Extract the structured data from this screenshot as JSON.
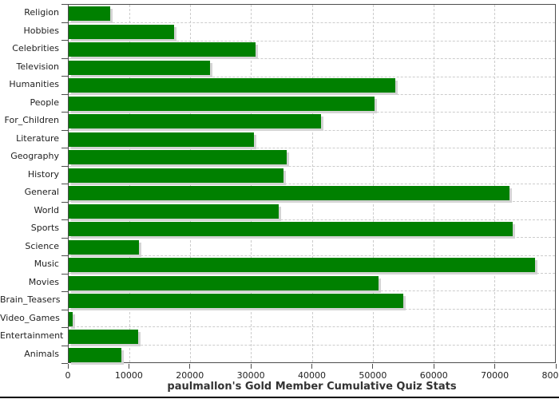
{
  "chart_data": {
    "type": "bar",
    "orientation": "horizontal",
    "title": "paulmallon's Gold Member Cumulative Quiz Stats",
    "xlabel": "",
    "ylabel": "",
    "categories": [
      "Religion",
      "Hobbies",
      "Celebrities",
      "Television",
      "Humanities",
      "People",
      "For_Children",
      "Literature",
      "Geography",
      "History",
      "General",
      "World",
      "Sports",
      "Science",
      "Music",
      "Movies",
      "Brain_Teasers",
      "Video_Games",
      "Entertainment",
      "Animals"
    ],
    "values": [
      6800,
      17300,
      30800,
      23300,
      53700,
      50300,
      41500,
      30500,
      35900,
      35400,
      72500,
      34500,
      73000,
      11600,
      76700,
      51000,
      55100,
      700,
      11400,
      8700
    ],
    "xlim": [
      0,
      80000
    ],
    "x_ticks": [
      0,
      10000,
      20000,
      30000,
      40000,
      50000,
      60000,
      70000,
      80000
    ],
    "grid": "dashed-both-axes",
    "legend": "none",
    "colors": {
      "bar_fill": "#008000",
      "bar_shadow": "#d4d4d4",
      "gridline": "#cccccc",
      "frame": "#4d4d4d",
      "tick_text": "#222222",
      "title_text": "#333333"
    }
  }
}
